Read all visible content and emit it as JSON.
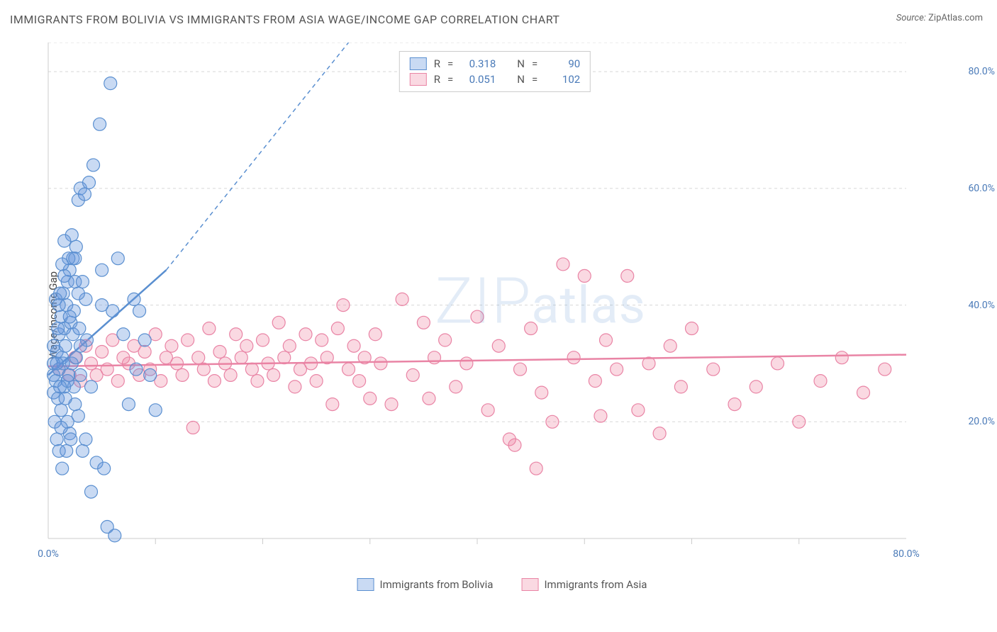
{
  "title": "IMMIGRANTS FROM BOLIVIA VS IMMIGRANTS FROM ASIA WAGE/INCOME GAP CORRELATION CHART",
  "source": {
    "label": "Source:",
    "name": "ZipAtlas.com"
  },
  "watermark": {
    "prefix": "ZIP",
    "suffix": "atlas"
  },
  "ylabel": "Wage/Income Gap",
  "chart": {
    "type": "scatter",
    "xlim": [
      0,
      80
    ],
    "ylim": [
      0,
      85
    ],
    "xtick_labels": [
      "0.0%",
      "80.0%"
    ],
    "xtick_positions": [
      0,
      80
    ],
    "ytick_labels": [
      "20.0%",
      "40.0%",
      "60.0%",
      "80.0%"
    ],
    "ytick_positions": [
      20,
      40,
      60,
      80
    ],
    "gridline_y": [
      20,
      40,
      60,
      80,
      85
    ],
    "grid_color": "#d8d8d8",
    "grid_dash": "4,4",
    "axis_color": "#cccccc",
    "minor_xticks": [
      10,
      20,
      30,
      40,
      50,
      60,
      70
    ],
    "background_color": "#ffffff"
  },
  "series": {
    "blue": {
      "label": "Immigrants from Bolivia",
      "color_fill": "rgba(100,150,220,0.35)",
      "color_stroke": "#5a8fd0",
      "marker_radius": 9,
      "r_value": "0.318",
      "n_value": "90",
      "trend": {
        "solid": {
          "x1": 0,
          "y1": 28,
          "x2": 11,
          "y2": 46
        },
        "dash": {
          "x1": 11,
          "y1": 46,
          "x2": 28,
          "y2": 85
        }
      },
      "points": [
        [
          0.5,
          28
        ],
        [
          0.5,
          30
        ],
        [
          0.5,
          25
        ],
        [
          0.7,
          27
        ],
        [
          0.8,
          32
        ],
        [
          0.9,
          24
        ],
        [
          1,
          29
        ],
        [
          1,
          35
        ],
        [
          1.2,
          22
        ],
        [
          1.2,
          38
        ],
        [
          1.3,
          31
        ],
        [
          1.4,
          42
        ],
        [
          1.5,
          26
        ],
        [
          1.5,
          36
        ],
        [
          1.6,
          33
        ],
        [
          1.7,
          40
        ],
        [
          1.8,
          20
        ],
        [
          1.8,
          44
        ],
        [
          1.9,
          28
        ],
        [
          2,
          46
        ],
        [
          2,
          18
        ],
        [
          2.1,
          37
        ],
        [
          2.2,
          30
        ],
        [
          2.3,
          48
        ],
        [
          2.4,
          39
        ],
        [
          2.5,
          23
        ],
        [
          2.5,
          44
        ],
        [
          2.6,
          50
        ],
        [
          2.8,
          21
        ],
        [
          2.8,
          58
        ],
        [
          3,
          28
        ],
        [
          3,
          60
        ],
        [
          3.2,
          15
        ],
        [
          3.4,
          59
        ],
        [
          3.5,
          41
        ],
        [
          3.6,
          34
        ],
        [
          3.8,
          61
        ],
        [
          4,
          26
        ],
        [
          4,
          8
        ],
        [
          4.2,
          64
        ],
        [
          4.5,
          13
        ],
        [
          4.8,
          71
        ],
        [
          5,
          46
        ],
        [
          5,
          40
        ],
        [
          5.2,
          12
        ],
        [
          5.5,
          2
        ],
        [
          5.8,
          78
        ],
        [
          6,
          39
        ],
        [
          6.2,
          0.5
        ],
        [
          6.5,
          48
        ],
        [
          7,
          35
        ],
        [
          7.5,
          23
        ],
        [
          8,
          41
        ],
        [
          8.2,
          29
        ],
        [
          8.5,
          39
        ],
        [
          9,
          34
        ],
        [
          9.5,
          28
        ],
        [
          10,
          22
        ],
        [
          1,
          15
        ],
        [
          1.5,
          45
        ],
        [
          0.8,
          17
        ],
        [
          2.2,
          52
        ],
        [
          1.3,
          12
        ],
        [
          3.2,
          44
        ],
        [
          2.6,
          31
        ],
        [
          1.9,
          48
        ],
        [
          0.6,
          20
        ],
        [
          1.1,
          42
        ],
        [
          2.4,
          26
        ],
        [
          1.7,
          15
        ],
        [
          0.9,
          36
        ],
        [
          2.8,
          42
        ],
        [
          1.4,
          30
        ],
        [
          3.0,
          33
        ],
        [
          2.1,
          17
        ],
        [
          0.7,
          41
        ],
        [
          1.6,
          24
        ],
        [
          2.3,
          35
        ],
        [
          1.0,
          40
        ],
        [
          0.5,
          33
        ],
        [
          1.8,
          27
        ],
        [
          2.5,
          48
        ],
        [
          1.2,
          19
        ],
        [
          0.8,
          30
        ],
        [
          3.5,
          17
        ],
        [
          1.5,
          51
        ],
        [
          2.0,
          38
        ],
        [
          1.1,
          26
        ],
        [
          2.9,
          36
        ],
        [
          1.3,
          47
        ]
      ]
    },
    "pink": {
      "label": "Immigrants from Asia",
      "color_fill": "rgba(240,130,160,0.30)",
      "color_stroke": "#e984a5",
      "marker_radius": 9,
      "r_value": "0.051",
      "n_value": "102",
      "trend": {
        "solid": {
          "x1": 0,
          "y1": 29.5,
          "x2": 80,
          "y2": 31.5
        }
      },
      "points": [
        [
          1,
          29
        ],
        [
          2,
          28
        ],
        [
          2.5,
          31
        ],
        [
          3,
          27
        ],
        [
          3.5,
          33
        ],
        [
          4,
          30
        ],
        [
          4.5,
          28
        ],
        [
          5,
          32
        ],
        [
          5.5,
          29
        ],
        [
          6,
          34
        ],
        [
          6.5,
          27
        ],
        [
          7,
          31
        ],
        [
          7.5,
          30
        ],
        [
          8,
          33
        ],
        [
          8.5,
          28
        ],
        [
          9,
          32
        ],
        [
          9.5,
          29
        ],
        [
          10,
          35
        ],
        [
          10.5,
          27
        ],
        [
          11,
          31
        ],
        [
          11.5,
          33
        ],
        [
          12,
          30
        ],
        [
          12.5,
          28
        ],
        [
          13,
          34
        ],
        [
          13.5,
          19
        ],
        [
          14,
          31
        ],
        [
          14.5,
          29
        ],
        [
          15,
          36
        ],
        [
          15.5,
          27
        ],
        [
          16,
          32
        ],
        [
          16.5,
          30
        ],
        [
          17,
          28
        ],
        [
          17.5,
          35
        ],
        [
          18,
          31
        ],
        [
          18.5,
          33
        ],
        [
          19,
          29
        ],
        [
          19.5,
          27
        ],
        [
          20,
          34
        ],
        [
          20.5,
          30
        ],
        [
          21,
          28
        ],
        [
          21.5,
          37
        ],
        [
          22,
          31
        ],
        [
          22.5,
          33
        ],
        [
          23,
          26
        ],
        [
          23.5,
          29
        ],
        [
          24,
          35
        ],
        [
          24.5,
          30
        ],
        [
          25,
          27
        ],
        [
          25.5,
          34
        ],
        [
          26,
          31
        ],
        [
          26.5,
          23
        ],
        [
          27,
          36
        ],
        [
          27.5,
          40
        ],
        [
          28,
          29
        ],
        [
          28.5,
          33
        ],
        [
          29,
          27
        ],
        [
          29.5,
          31
        ],
        [
          30,
          24
        ],
        [
          30.5,
          35
        ],
        [
          31,
          30
        ],
        [
          32,
          23
        ],
        [
          33,
          41
        ],
        [
          34,
          28
        ],
        [
          35,
          37
        ],
        [
          35.5,
          24
        ],
        [
          36,
          31
        ],
        [
          37,
          34
        ],
        [
          38,
          26
        ],
        [
          39,
          30
        ],
        [
          40,
          38
        ],
        [
          41,
          22
        ],
        [
          42,
          33
        ],
        [
          43,
          17
        ],
        [
          43.5,
          16
        ],
        [
          44,
          29
        ],
        [
          45,
          36
        ],
        [
          45.5,
          12
        ],
        [
          46,
          25
        ],
        [
          47,
          20
        ],
        [
          48,
          47
        ],
        [
          49,
          31
        ],
        [
          50,
          45
        ],
        [
          51,
          27
        ],
        [
          51.5,
          21
        ],
        [
          52,
          34
        ],
        [
          53,
          29
        ],
        [
          54,
          45
        ],
        [
          55,
          22
        ],
        [
          56,
          30
        ],
        [
          57,
          18
        ],
        [
          58,
          33
        ],
        [
          59,
          26
        ],
        [
          60,
          36
        ],
        [
          62,
          29
        ],
        [
          64,
          23
        ],
        [
          66,
          26
        ],
        [
          68,
          30
        ],
        [
          70,
          20
        ],
        [
          72,
          27
        ],
        [
          74,
          31
        ],
        [
          76,
          25
        ],
        [
          78,
          29
        ]
      ]
    }
  },
  "stats_legend": {
    "r_label": "R",
    "n_label": "N",
    "eq": "="
  }
}
